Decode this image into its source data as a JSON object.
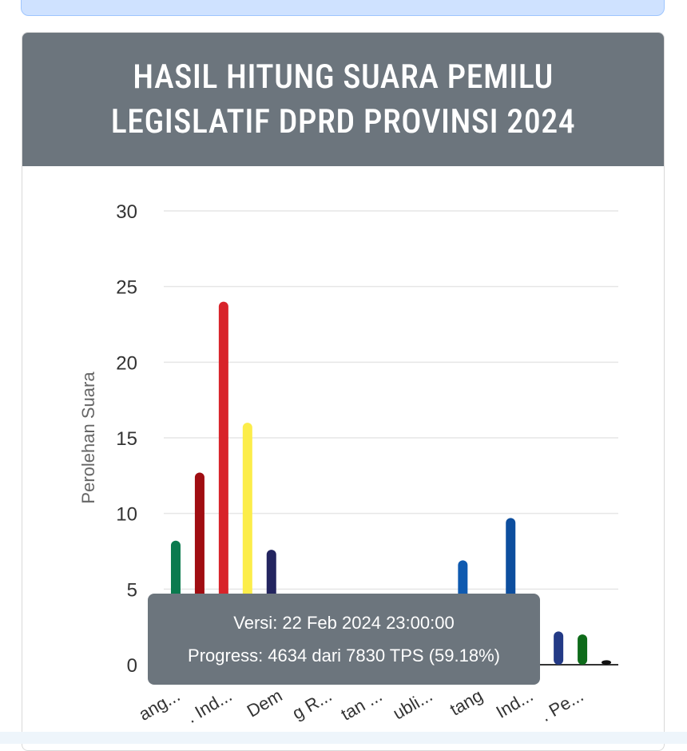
{
  "card": {
    "title_line1": "HASIL HITUNG SUARA PEMILU",
    "title_line2": "LEGISLATIF DPRD PROVINSI 2024"
  },
  "tooltip": {
    "version": "Versi: 22 Feb 2024 23:00:00",
    "progress": "Progress: 4634 dari 7830 TPS (59.18%)"
  },
  "chart_data": {
    "type": "bar",
    "ylabel": "Perolehan Suara",
    "ylim": [
      0,
      30
    ],
    "yticks": [
      0,
      5,
      10,
      15,
      20,
      25,
      30
    ],
    "grid": true,
    "categories": [
      "",
      "",
      "",
      "",
      "",
      "",
      "",
      "",
      "",
      "",
      "",
      "",
      "",
      "",
      "",
      "",
      "",
      "",
      ""
    ],
    "category_labels_visible": [
      "ang...",
      ". Ind...",
      "Dem",
      "g R...",
      "tan ...",
      "ubli...",
      "tang",
      "Ind...",
      ". Pe..."
    ],
    "values": [
      8.2,
      12.7,
      24.0,
      16.0,
      7.6,
      0.4,
      0.3,
      0.2,
      0.2,
      0.1,
      0.1,
      0.1,
      6.9,
      0.3,
      9.7,
      0.5,
      2.2,
      2.0,
      0.3
    ],
    "colors": [
      "#0a7a4e",
      "#a00d12",
      "#d8232a",
      "#fced4a",
      "#23255f",
      "#444444",
      "#444444",
      "#444444",
      "#444444",
      "#444444",
      "#444444",
      "#444444",
      "#0f5ab0",
      "#444444",
      "#0d4e9e",
      "#444444",
      "#233a86",
      "#0e6b1a",
      "#111111"
    ]
  }
}
